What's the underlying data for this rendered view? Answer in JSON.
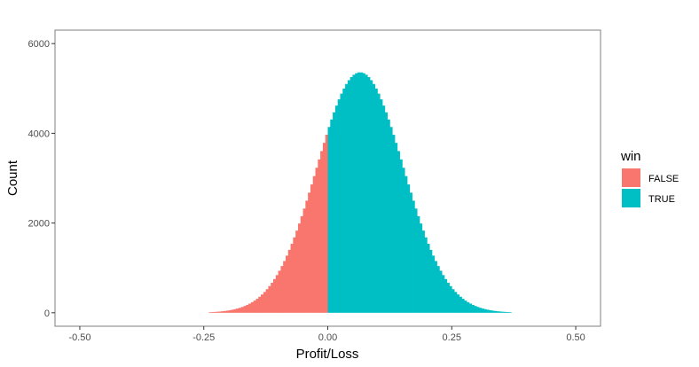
{
  "chart_data": {
    "type": "histogram",
    "title": "",
    "xlabel": "Profit/Loss",
    "ylabel": "Count",
    "xlim": [
      -0.55,
      0.55
    ],
    "ylim": [
      -300,
      6300
    ],
    "x_ticks": [
      -0.5,
      -0.25,
      0.0,
      0.25,
      0.5
    ],
    "x_tick_labels": [
      "-0.50",
      "-0.25",
      "0.00",
      "0.25",
      "0.50"
    ],
    "y_ticks": [
      0,
      2000,
      4000,
      6000
    ],
    "y_tick_labels": [
      "0",
      "2000",
      "4000",
      "6000"
    ],
    "grid": false,
    "legend": {
      "title": "win",
      "position": "right",
      "entries": [
        {
          "label": "FALSE",
          "color": "#F8766D"
        },
        {
          "label": "TRUE",
          "color": "#00BFC4"
        }
      ]
    },
    "distribution": {
      "approx_center": 0.065,
      "approx_sd": 0.087,
      "approx_peak_count": 5360,
      "support": [
        -0.24,
        0.37
      ],
      "bin_width": 0.005,
      "split_at": 0.0
    },
    "series": [
      {
        "name": "FALSE",
        "color": "#F8766D",
        "x_range": [
          -0.24,
          0.0
        ]
      },
      {
        "name": "TRUE",
        "color": "#00BFC4",
        "x_range": [
          0.0,
          0.37
        ]
      }
    ]
  }
}
